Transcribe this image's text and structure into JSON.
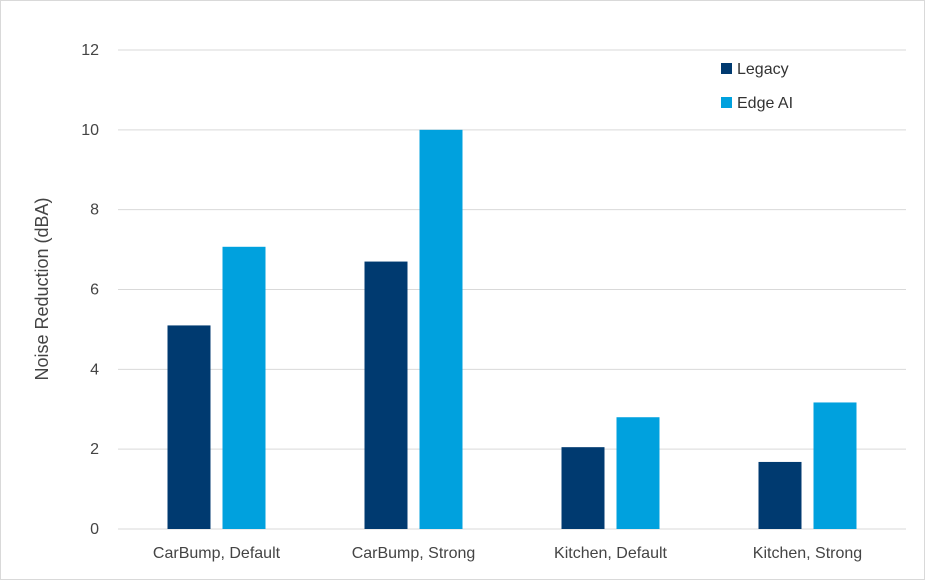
{
  "chart_data": {
    "type": "bar",
    "categories": [
      "CarBump, Default",
      "CarBump, Strong",
      "Kitchen, Default",
      "Kitchen, Strong"
    ],
    "series": [
      {
        "name": "Legacy",
        "color": "#003a70",
        "values": [
          5.1,
          6.7,
          2.05,
          1.68
        ]
      },
      {
        "name": "Edge AI",
        "color": "#00a1de",
        "values": [
          7.07,
          10.0,
          2.8,
          3.17
        ]
      }
    ],
    "title": "",
    "xlabel": "",
    "ylabel": "Noise Reduction (dBA)",
    "ylim": [
      0,
      12
    ],
    "yticks": [
      0,
      2,
      4,
      6,
      8,
      10,
      12
    ],
    "grid": true,
    "legend_position": "top-right"
  }
}
